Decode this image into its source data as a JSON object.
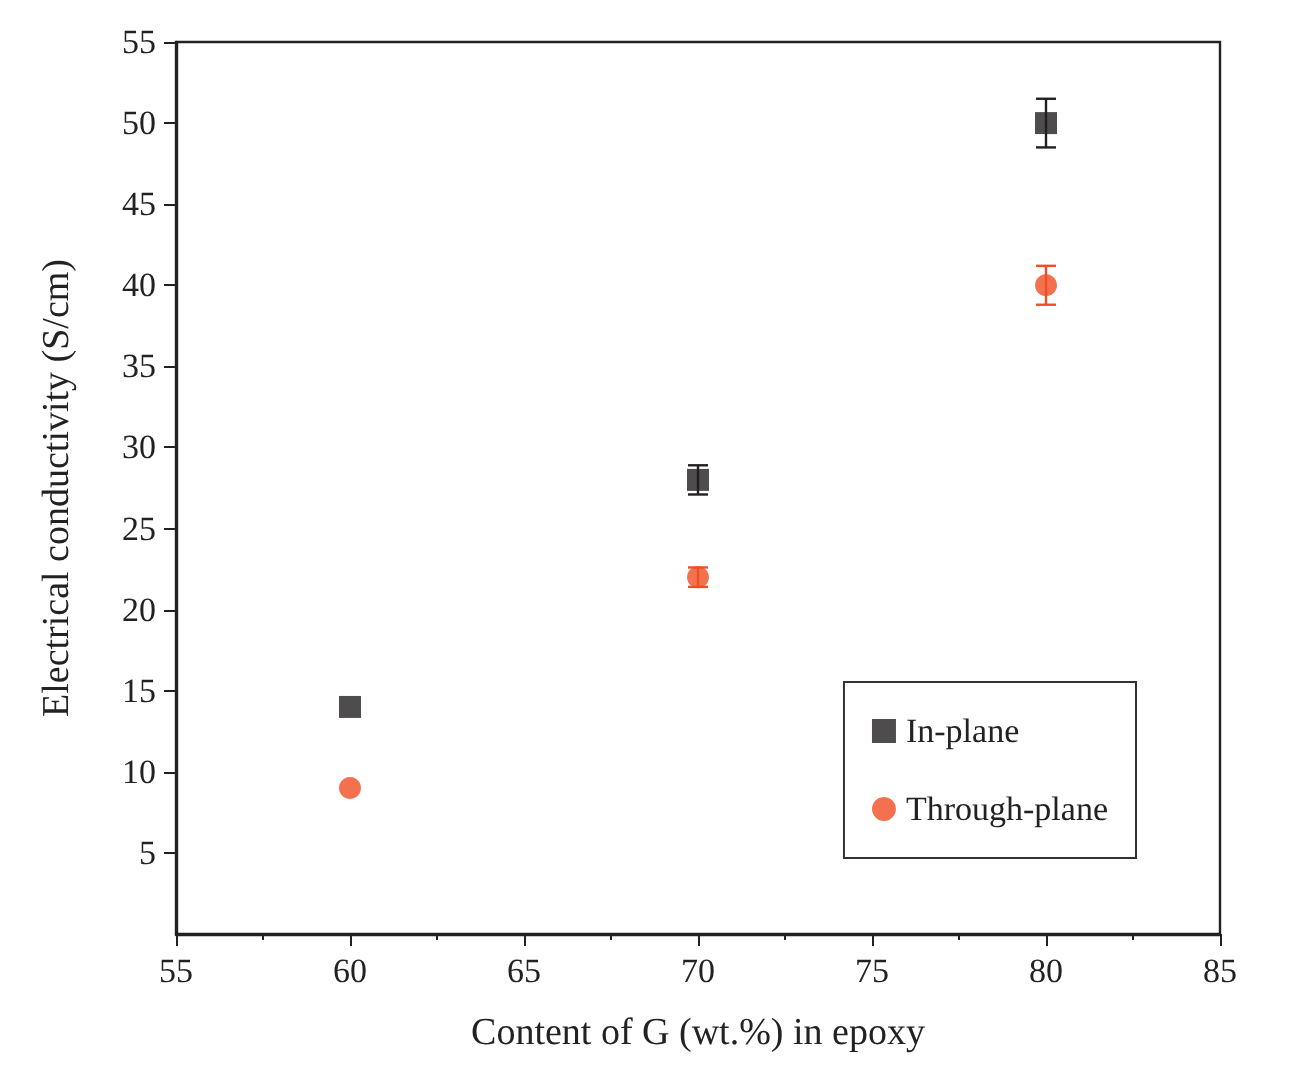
{
  "chart_data": {
    "type": "scatter",
    "xlabel": "Content of G (wt.%) in epoxy",
    "ylabel": "Electrical conductivity (S/cm)",
    "x": [
      60,
      70,
      80
    ],
    "series": [
      {
        "name": "In-plane",
        "color": "#231f20",
        "marker": "square",
        "values": [
          14,
          28,
          50
        ],
        "errors": [
          null,
          0.9,
          1.5
        ]
      },
      {
        "name": "Through-plane",
        "color": "#f04e23",
        "marker": "circle",
        "values": [
          9,
          22,
          40
        ],
        "errors": [
          null,
          0.6,
          1.2
        ]
      }
    ],
    "xlim": [
      55,
      85
    ],
    "xticks": [
      55,
      60,
      65,
      70,
      75,
      80,
      85
    ],
    "ylim": [
      0,
      55
    ],
    "yticks": [
      5,
      10,
      15,
      20,
      25,
      30,
      35,
      40,
      45,
      50,
      55
    ],
    "grid": false,
    "legend": "bottom right"
  }
}
